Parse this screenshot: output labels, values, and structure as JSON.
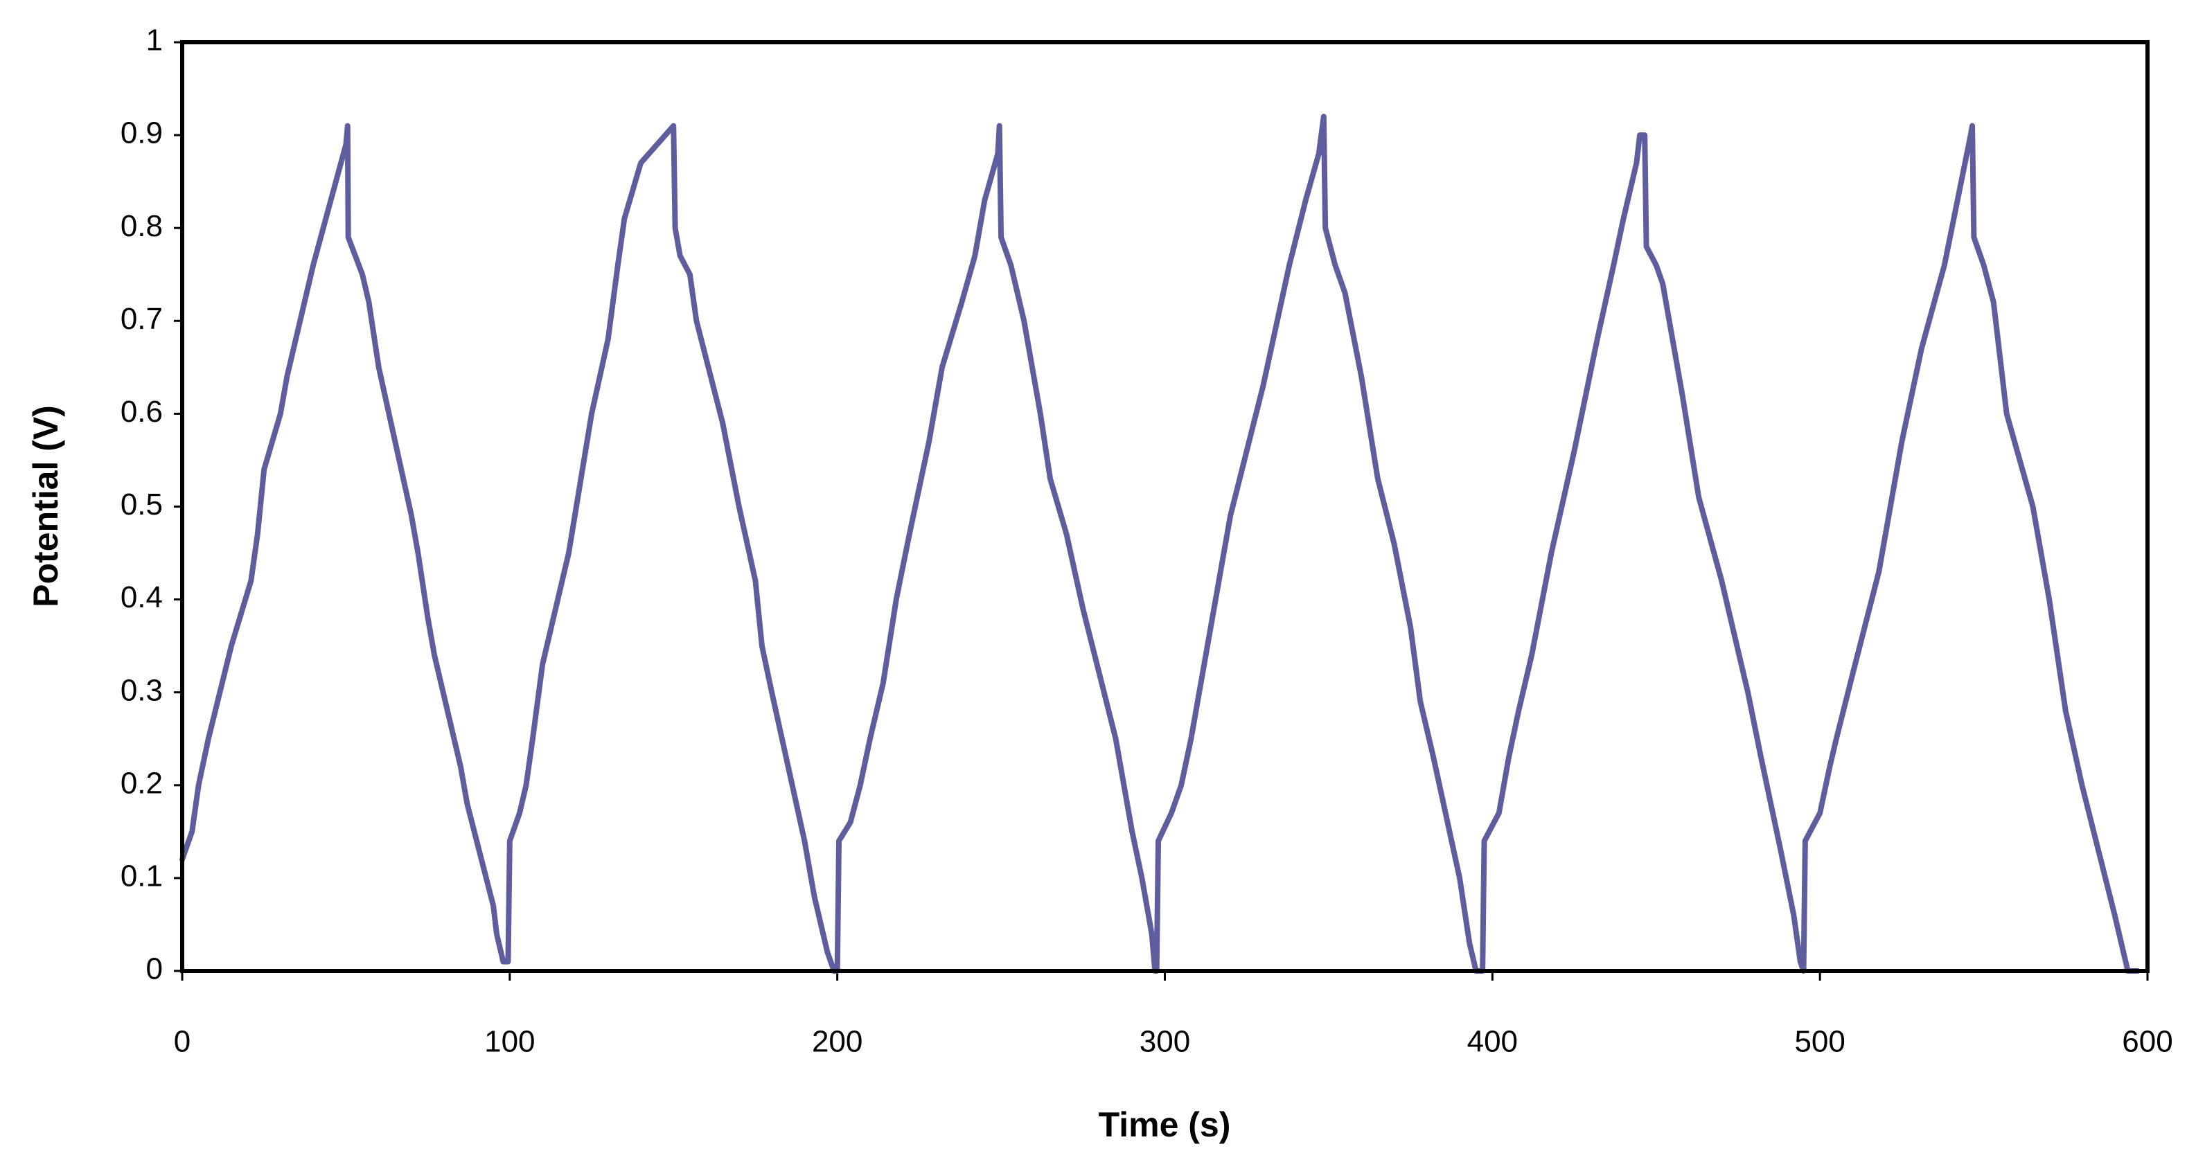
{
  "chart_data": {
    "type": "line",
    "xlabel": "Time (s)",
    "ylabel": "Potential (V)",
    "color": "#5e5e9e",
    "xlim": [
      0,
      600
    ],
    "xticks": [
      0,
      100,
      200,
      300,
      400,
      500,
      600
    ],
    "ylim": [
      0,
      1
    ],
    "yticks": [
      0,
      0.1,
      0.2,
      0.3,
      0.4,
      0.5,
      0.6,
      0.7,
      0.8,
      0.9,
      1
    ],
    "grid": false,
    "x": [
      0,
      3,
      5,
      8,
      15,
      21,
      23,
      25,
      30,
      32,
      40,
      50,
      50.5,
      50.7,
      55,
      57,
      60,
      65,
      70,
      72,
      75,
      77,
      85,
      87,
      95,
      96,
      98,
      99.5,
      100,
      103,
      105,
      107,
      110,
      118,
      125,
      130,
      133,
      135,
      140,
      150,
      150.5,
      152,
      155,
      157,
      165,
      170,
      175,
      177,
      180,
      185,
      190,
      193,
      197,
      199,
      200,
      200.5,
      204,
      207,
      210,
      214,
      218,
      222,
      228,
      232,
      238,
      242,
      245,
      249,
      249.5,
      250,
      253,
      257,
      262,
      265,
      270,
      275,
      285,
      290,
      293,
      296,
      297,
      297.5,
      298,
      302,
      305,
      308,
      312,
      316,
      320,
      330,
      338,
      343,
      347,
      348.5,
      349,
      352,
      355,
      360,
      365,
      370,
      375,
      378,
      382,
      390,
      393,
      395,
      397,
      397.5,
      402,
      405,
      408,
      412,
      418,
      425,
      432,
      437,
      440,
      444,
      445,
      446.5,
      447,
      450,
      452,
      458,
      463,
      470,
      478,
      482,
      488,
      492,
      494,
      495,
      495.5,
      500,
      503,
      505,
      510,
      518,
      525,
      531,
      538,
      542,
      546,
      546.5,
      547,
      550,
      553,
      557,
      565,
      570,
      575,
      580,
      585,
      590,
      594,
      597
    ],
    "values": [
      0.12,
      0.15,
      0.2,
      0.25,
      0.35,
      0.42,
      0.47,
      0.54,
      0.6,
      0.64,
      0.76,
      0.89,
      0.91,
      0.79,
      0.75,
      0.72,
      0.65,
      0.57,
      0.49,
      0.45,
      0.38,
      0.34,
      0.22,
      0.18,
      0.07,
      0.04,
      0.01,
      0.01,
      0.14,
      0.17,
      0.2,
      0.25,
      0.33,
      0.45,
      0.6,
      0.68,
      0.76,
      0.81,
      0.87,
      0.91,
      0.8,
      0.77,
      0.75,
      0.7,
      0.59,
      0.5,
      0.42,
      0.35,
      0.3,
      0.22,
      0.14,
      0.08,
      0.02,
      0,
      0,
      0.14,
      0.16,
      0.2,
      0.25,
      0.31,
      0.4,
      0.47,
      0.57,
      0.65,
      0.72,
      0.77,
      0.83,
      0.88,
      0.91,
      0.79,
      0.76,
      0.7,
      0.6,
      0.53,
      0.47,
      0.39,
      0.25,
      0.15,
      0.1,
      0.04,
      0,
      0,
      0.14,
      0.17,
      0.2,
      0.25,
      0.33,
      0.41,
      0.49,
      0.63,
      0.76,
      0.83,
      0.88,
      0.92,
      0.8,
      0.76,
      0.73,
      0.64,
      0.53,
      0.46,
      0.37,
      0.29,
      0.23,
      0.1,
      0.03,
      0,
      0,
      0.14,
      0.17,
      0.23,
      0.28,
      0.34,
      0.45,
      0.56,
      0.68,
      0.76,
      0.81,
      0.87,
      0.9,
      0.9,
      0.78,
      0.76,
      0.74,
      0.62,
      0.51,
      0.42,
      0.3,
      0.23,
      0.13,
      0.06,
      0.01,
      0,
      0.14,
      0.17,
      0.22,
      0.25,
      0.32,
      0.43,
      0.57,
      0.67,
      0.76,
      0.83,
      0.9,
      0.91,
      0.79,
      0.76,
      0.72,
      0.6,
      0.5,
      0.4,
      0.28,
      0.2,
      0.13,
      0.06,
      0,
      0
    ]
  }
}
